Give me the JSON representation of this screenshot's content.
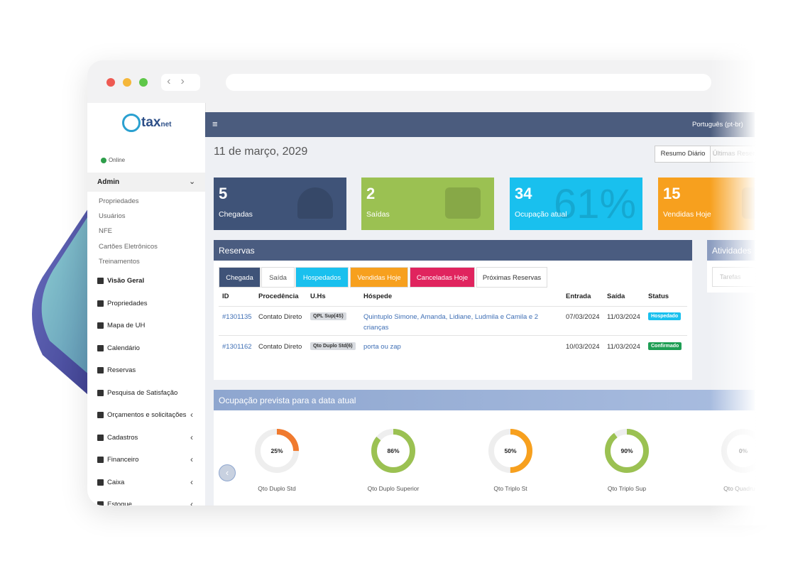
{
  "browser": {
    "window": "ataxnet"
  },
  "sidebar": {
    "logo": "tax",
    "logo_suffix": "net",
    "status": "Online",
    "admin": "Admin",
    "admin_items": [
      "Propriedades",
      "Usuários",
      "NFE",
      "Cartões Eletrônicos",
      "Treinamentos"
    ],
    "menu": [
      "Visão Geral",
      "Propriedades",
      "Mapa de UH",
      "Calendário",
      "Reservas",
      "Pesquisa de Satisfação",
      "Orçamentos e solicitações",
      "Cadastros",
      "Financeiro",
      "Caixa",
      "Estoque"
    ]
  },
  "topbar": {
    "language": "Português (pt-br)"
  },
  "header": {
    "date": "11 de março, 2029",
    "buttons": [
      "Resumo Diário",
      "Últimas Reservas"
    ]
  },
  "stats": [
    {
      "value": "5",
      "label": "Chegadas"
    },
    {
      "value": "2",
      "label": "Saídas"
    },
    {
      "value": "34",
      "label": "Ocupação atual",
      "watermark": "61%"
    },
    {
      "value": "15",
      "label": "Vendidas Hoje"
    }
  ],
  "reservas": {
    "title": "Reservas",
    "tabs": [
      "Chegada",
      "Saída",
      "Hospedados",
      "Vendidas Hoje",
      "Canceladas Hoje",
      "Próximas Reservas"
    ],
    "columns": [
      "ID",
      "Procedência",
      "U.Hs",
      "Hóspede",
      "Entrada",
      "Saída",
      "Status"
    ],
    "rows": [
      [
        "#1301135",
        "Contato Direto",
        "QPL Sup(4S)",
        "Quintuplo Simone, Amanda, Lidiane, Ludmila e Camila e 2 crianças",
        "07/03/2024",
        "11/03/2024",
        "Hospedado"
      ],
      [
        "#1301162",
        "Contato Direto",
        "Qto Duplo Std(6)",
        "porta ou zap",
        "10/03/2024",
        "11/03/2024",
        "Confirmado"
      ]
    ]
  },
  "atividades": {
    "title": "Atividades",
    "tab": "Tarefas"
  },
  "ocupacao": {
    "title": "Ocupação prevista para a data atual",
    "rooms": [
      {
        "name": "Qto Duplo Std",
        "value": 25,
        "label": "25%"
      },
      {
        "name": "Qto Duplo Superior",
        "value": 86,
        "label": "86%"
      },
      {
        "name": "Qto Triplo St",
        "value": 50,
        "label": "50%"
      },
      {
        "name": "Qto Triplo Sup",
        "value": 90,
        "label": "90%"
      },
      {
        "name": "Qto Quadruplo",
        "value": 0,
        "label": "0%"
      }
    ]
  }
}
